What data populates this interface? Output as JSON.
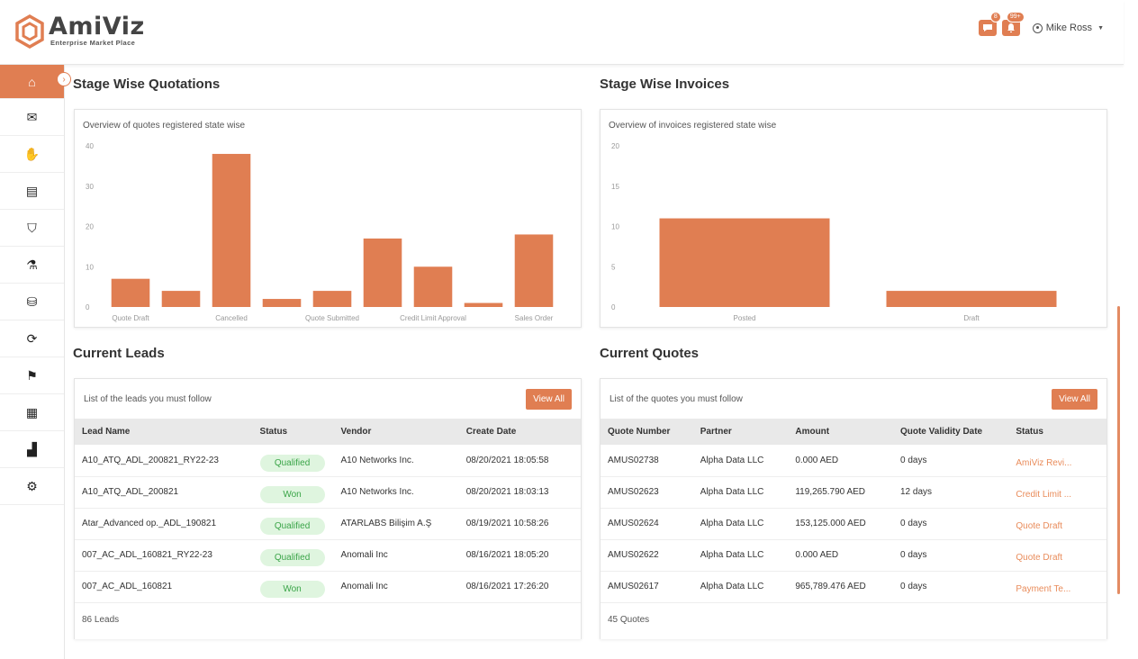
{
  "brand": {
    "name": "AmiViz",
    "tagline": "Enterprise Market Place",
    "accent": "#e07e52"
  },
  "header": {
    "messages_badge": "8",
    "notifications_badge": "99+",
    "user_name": "Mike Ross"
  },
  "sidebar": {
    "items": [
      {
        "icon": "home-icon",
        "glyph": "⌂"
      },
      {
        "icon": "mail-icon",
        "glyph": "✉"
      },
      {
        "icon": "handshake-icon",
        "glyph": "✋"
      },
      {
        "icon": "document-icon",
        "glyph": "▤"
      },
      {
        "icon": "shopping-bag-icon",
        "glyph": "⛉"
      },
      {
        "icon": "flask-icon",
        "glyph": "⚗"
      },
      {
        "icon": "coins-icon",
        "glyph": "⛁"
      },
      {
        "icon": "sync-icon",
        "glyph": "⟳"
      },
      {
        "icon": "presentation-icon",
        "glyph": "⚑"
      },
      {
        "icon": "store-icon",
        "glyph": "▦"
      },
      {
        "icon": "chart-icon",
        "glyph": "▟"
      },
      {
        "icon": "gear-icon",
        "glyph": "⚙"
      }
    ]
  },
  "quotations": {
    "title": "Stage Wise Quotations",
    "subtitle": "Overview of quotes registered state wise"
  },
  "invoices": {
    "title": "Stage Wise Invoices",
    "subtitle": "Overview of invoices registered state wise"
  },
  "chart_data": [
    {
      "type": "bar",
      "title": "",
      "categories": [
        "Quote Draft",
        "",
        "Cancelled",
        "",
        "Quote Submitted",
        "",
        "Credit Limit Approval",
        "",
        "Sales Order"
      ],
      "values": [
        7,
        4,
        38,
        2,
        4,
        17,
        10,
        1,
        18
      ],
      "ylim": [
        0,
        40
      ],
      "yticks": [
        0,
        10,
        20,
        30,
        40
      ],
      "color": "#e07e52",
      "grid": false
    },
    {
      "type": "bar",
      "title": "",
      "categories": [
        "Posted",
        "Draft"
      ],
      "values": [
        11,
        2
      ],
      "ylim": [
        0,
        20
      ],
      "yticks": [
        0,
        5,
        10,
        15,
        20
      ],
      "color": "#e07e52",
      "grid": false
    }
  ],
  "leads": {
    "title": "Current Leads",
    "subtitle": "List of the leads you must follow",
    "view_all": "View All",
    "columns": [
      "Lead Name",
      "Status",
      "Vendor",
      "Create Date"
    ],
    "rows": [
      [
        "A10_ATQ_ADL_200821_RY22-23",
        "Qualified",
        "A10 Networks Inc.",
        "08/20/2021 18:05:58"
      ],
      [
        "A10_ATQ_ADL_200821",
        "Won",
        "A10 Networks Inc.",
        "08/20/2021 18:03:13"
      ],
      [
        "Atar_Advanced op._ADL_190821",
        "Qualified",
        "ATARLABS Bilişim A.Ş",
        "08/19/2021 10:58:26"
      ],
      [
        "007_AC_ADL_160821_RY22-23",
        "Qualified",
        "Anomali Inc",
        "08/16/2021 18:05:20"
      ],
      [
        "007_AC_ADL_160821",
        "Won",
        "Anomali Inc",
        "08/16/2021 17:26:20"
      ]
    ],
    "count": "86 Leads"
  },
  "quotes": {
    "title": "Current Quotes",
    "subtitle": "List of the quotes you must follow",
    "view_all": "View All",
    "columns": [
      "Quote Number",
      "Partner",
      "Amount",
      "Quote Validity Date",
      "Status"
    ],
    "rows": [
      [
        "AMUS02738",
        "Alpha Data LLC",
        "0.000 AED",
        "0 days",
        "AmiViz Revi..."
      ],
      [
        "AMUS02623",
        "Alpha Data LLC",
        "119,265.790 AED",
        "12 days",
        "Credit Limit ..."
      ],
      [
        "AMUS02624",
        "Alpha Data LLC",
        "153,125.000 AED",
        "0 days",
        "Quote Draft"
      ],
      [
        "AMUS02622",
        "Alpha Data LLC",
        "0.000 AED",
        "0 days",
        "Quote Draft"
      ],
      [
        "AMUS02617",
        "Alpha Data LLC",
        "965,789.476 AED",
        "0 days",
        "Payment Te..."
      ]
    ],
    "count": "45 Quotes"
  }
}
